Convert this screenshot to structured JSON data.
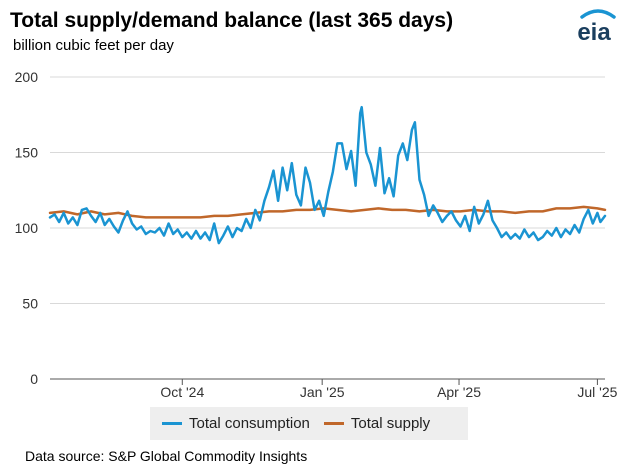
{
  "header": {
    "title": "Total supply/demand balance (last 365 days)",
    "subtitle": "billion cubic feet per day",
    "logo_text": "eia"
  },
  "footer": {
    "source": "Data source: S&P Global Commodity Insights"
  },
  "colors": {
    "consumption": "#1a94d2",
    "supply": "#c0672a",
    "grid": "#d9d9d9",
    "axis": "#555555",
    "logo_arc": "#1a94d2"
  },
  "chart_data": {
    "type": "line",
    "title": "Total supply/demand balance (last 365 days)",
    "ylabel": "billion cubic feet per day",
    "ylim": [
      0,
      200
    ],
    "yticks": [
      0,
      50,
      100,
      150,
      200
    ],
    "xlim": [
      "2024-07-06",
      "2025-07-06"
    ],
    "xticks": [
      {
        "date": "2024-10-01",
        "label": "Oct '24"
      },
      {
        "date": "2025-01-01",
        "label": "Jan '25"
      },
      {
        "date": "2025-04-01",
        "label": "Apr '25"
      },
      {
        "date": "2025-07-01",
        "label": "Jul '25"
      }
    ],
    "grid": true,
    "legend_position": "bottom",
    "series": [
      {
        "name": "Total consumption",
        "color": "#1a94d2",
        "points": [
          [
            "2024-07-06",
            107
          ],
          [
            "2024-07-09",
            109
          ],
          [
            "2024-07-12",
            104
          ],
          [
            "2024-07-15",
            110
          ],
          [
            "2024-07-18",
            103
          ],
          [
            "2024-07-21",
            107
          ],
          [
            "2024-07-24",
            102
          ],
          [
            "2024-07-27",
            112
          ],
          [
            "2024-07-30",
            113
          ],
          [
            "2024-08-02",
            108
          ],
          [
            "2024-08-05",
            104
          ],
          [
            "2024-08-08",
            110
          ],
          [
            "2024-08-11",
            102
          ],
          [
            "2024-08-14",
            106
          ],
          [
            "2024-08-17",
            101
          ],
          [
            "2024-08-20",
            97
          ],
          [
            "2024-08-23",
            105
          ],
          [
            "2024-08-26",
            111
          ],
          [
            "2024-08-29",
            103
          ],
          [
            "2024-09-01",
            99
          ],
          [
            "2024-09-04",
            101
          ],
          [
            "2024-09-07",
            96
          ],
          [
            "2024-09-10",
            98
          ],
          [
            "2024-09-13",
            97
          ],
          [
            "2024-09-16",
            100
          ],
          [
            "2024-09-19",
            95
          ],
          [
            "2024-09-22",
            103
          ],
          [
            "2024-09-25",
            96
          ],
          [
            "2024-09-28",
            99
          ],
          [
            "2024-10-01",
            94
          ],
          [
            "2024-10-04",
            97
          ],
          [
            "2024-10-07",
            93
          ],
          [
            "2024-10-10",
            98
          ],
          [
            "2024-10-13",
            93
          ],
          [
            "2024-10-16",
            97
          ],
          [
            "2024-10-19",
            92
          ],
          [
            "2024-10-22",
            103
          ],
          [
            "2024-10-25",
            90
          ],
          [
            "2024-10-28",
            95
          ],
          [
            "2024-10-31",
            101
          ],
          [
            "2024-11-03",
            94
          ],
          [
            "2024-11-06",
            100
          ],
          [
            "2024-11-09",
            98
          ],
          [
            "2024-11-12",
            106
          ],
          [
            "2024-11-15",
            100
          ],
          [
            "2024-11-18",
            112
          ],
          [
            "2024-11-21",
            105
          ],
          [
            "2024-11-24",
            118
          ],
          [
            "2024-11-27",
            127
          ],
          [
            "2024-11-30",
            138
          ],
          [
            "2024-12-03",
            118
          ],
          [
            "2024-12-06",
            140
          ],
          [
            "2024-12-09",
            125
          ],
          [
            "2024-12-12",
            143
          ],
          [
            "2024-12-15",
            122
          ],
          [
            "2024-12-18",
            115
          ],
          [
            "2024-12-21",
            140
          ],
          [
            "2024-12-24",
            130
          ],
          [
            "2024-12-27",
            112
          ],
          [
            "2024-12-30",
            118
          ],
          [
            "2025-01-02",
            108
          ],
          [
            "2025-01-05",
            124
          ],
          [
            "2025-01-08",
            137
          ],
          [
            "2025-01-11",
            156
          ],
          [
            "2025-01-14",
            156
          ],
          [
            "2025-01-17",
            139
          ],
          [
            "2025-01-20",
            151
          ],
          [
            "2025-01-23",
            128
          ],
          [
            "2025-01-26",
            176
          ],
          [
            "2025-01-27",
            180
          ],
          [
            "2025-01-30",
            150
          ],
          [
            "2025-02-02",
            142
          ],
          [
            "2025-02-05",
            128
          ],
          [
            "2025-02-08",
            153
          ],
          [
            "2025-02-11",
            123
          ],
          [
            "2025-02-14",
            133
          ],
          [
            "2025-02-17",
            121
          ],
          [
            "2025-02-20",
            148
          ],
          [
            "2025-02-23",
            156
          ],
          [
            "2025-02-26",
            145
          ],
          [
            "2025-03-01",
            165
          ],
          [
            "2025-03-03",
            170
          ],
          [
            "2025-03-06",
            132
          ],
          [
            "2025-03-09",
            122
          ],
          [
            "2025-03-12",
            108
          ],
          [
            "2025-03-15",
            115
          ],
          [
            "2025-03-18",
            110
          ],
          [
            "2025-03-21",
            104
          ],
          [
            "2025-03-24",
            108
          ],
          [
            "2025-03-27",
            111
          ],
          [
            "2025-03-30",
            105
          ],
          [
            "2025-04-02",
            101
          ],
          [
            "2025-04-05",
            108
          ],
          [
            "2025-04-08",
            98
          ],
          [
            "2025-04-11",
            114
          ],
          [
            "2025-04-14",
            103
          ],
          [
            "2025-04-17",
            109
          ],
          [
            "2025-04-20",
            118
          ],
          [
            "2025-04-23",
            105
          ],
          [
            "2025-04-26",
            100
          ],
          [
            "2025-04-29",
            94
          ],
          [
            "2025-05-02",
            97
          ],
          [
            "2025-05-05",
            93
          ],
          [
            "2025-05-08",
            96
          ],
          [
            "2025-05-11",
            93
          ],
          [
            "2025-05-14",
            99
          ],
          [
            "2025-05-17",
            94
          ],
          [
            "2025-05-20",
            97
          ],
          [
            "2025-05-23",
            92
          ],
          [
            "2025-05-26",
            94
          ],
          [
            "2025-05-29",
            98
          ],
          [
            "2025-06-01",
            95
          ],
          [
            "2025-06-04",
            100
          ],
          [
            "2025-06-07",
            94
          ],
          [
            "2025-06-10",
            99
          ],
          [
            "2025-06-13",
            96
          ],
          [
            "2025-06-16",
            102
          ],
          [
            "2025-06-19",
            97
          ],
          [
            "2025-06-22",
            106
          ],
          [
            "2025-06-25",
            112
          ],
          [
            "2025-06-28",
            103
          ],
          [
            "2025-07-01",
            110
          ],
          [
            "2025-07-03",
            104
          ],
          [
            "2025-07-06",
            108
          ]
        ]
      },
      {
        "name": "Total supply",
        "color": "#c0672a",
        "points": [
          [
            "2024-07-06",
            110
          ],
          [
            "2024-07-15",
            111
          ],
          [
            "2024-07-24",
            109
          ],
          [
            "2024-08-02",
            111
          ],
          [
            "2024-08-11",
            109
          ],
          [
            "2024-08-20",
            110
          ],
          [
            "2024-08-29",
            108
          ],
          [
            "2024-09-07",
            107
          ],
          [
            "2024-09-16",
            107
          ],
          [
            "2024-09-25",
            107
          ],
          [
            "2024-10-04",
            107
          ],
          [
            "2024-10-13",
            107
          ],
          [
            "2024-10-22",
            108
          ],
          [
            "2024-10-31",
            108
          ],
          [
            "2024-11-09",
            109
          ],
          [
            "2024-11-18",
            110
          ],
          [
            "2024-11-27",
            111
          ],
          [
            "2024-12-06",
            111
          ],
          [
            "2024-12-15",
            112
          ],
          [
            "2024-12-24",
            112
          ],
          [
            "2025-01-02",
            113
          ],
          [
            "2025-01-11",
            112
          ],
          [
            "2025-01-20",
            111
          ],
          [
            "2025-01-29",
            112
          ],
          [
            "2025-02-07",
            113
          ],
          [
            "2025-02-16",
            112
          ],
          [
            "2025-02-25",
            112
          ],
          [
            "2025-03-06",
            111
          ],
          [
            "2025-03-15",
            112
          ],
          [
            "2025-03-24",
            111
          ],
          [
            "2025-04-02",
            111
          ],
          [
            "2025-04-11",
            112
          ],
          [
            "2025-04-20",
            111
          ],
          [
            "2025-04-29",
            111
          ],
          [
            "2025-05-08",
            110
          ],
          [
            "2025-05-17",
            111
          ],
          [
            "2025-05-26",
            111
          ],
          [
            "2025-06-04",
            113
          ],
          [
            "2025-06-13",
            113
          ],
          [
            "2025-06-22",
            114
          ],
          [
            "2025-07-01",
            113
          ],
          [
            "2025-07-06",
            112
          ]
        ]
      }
    ]
  }
}
